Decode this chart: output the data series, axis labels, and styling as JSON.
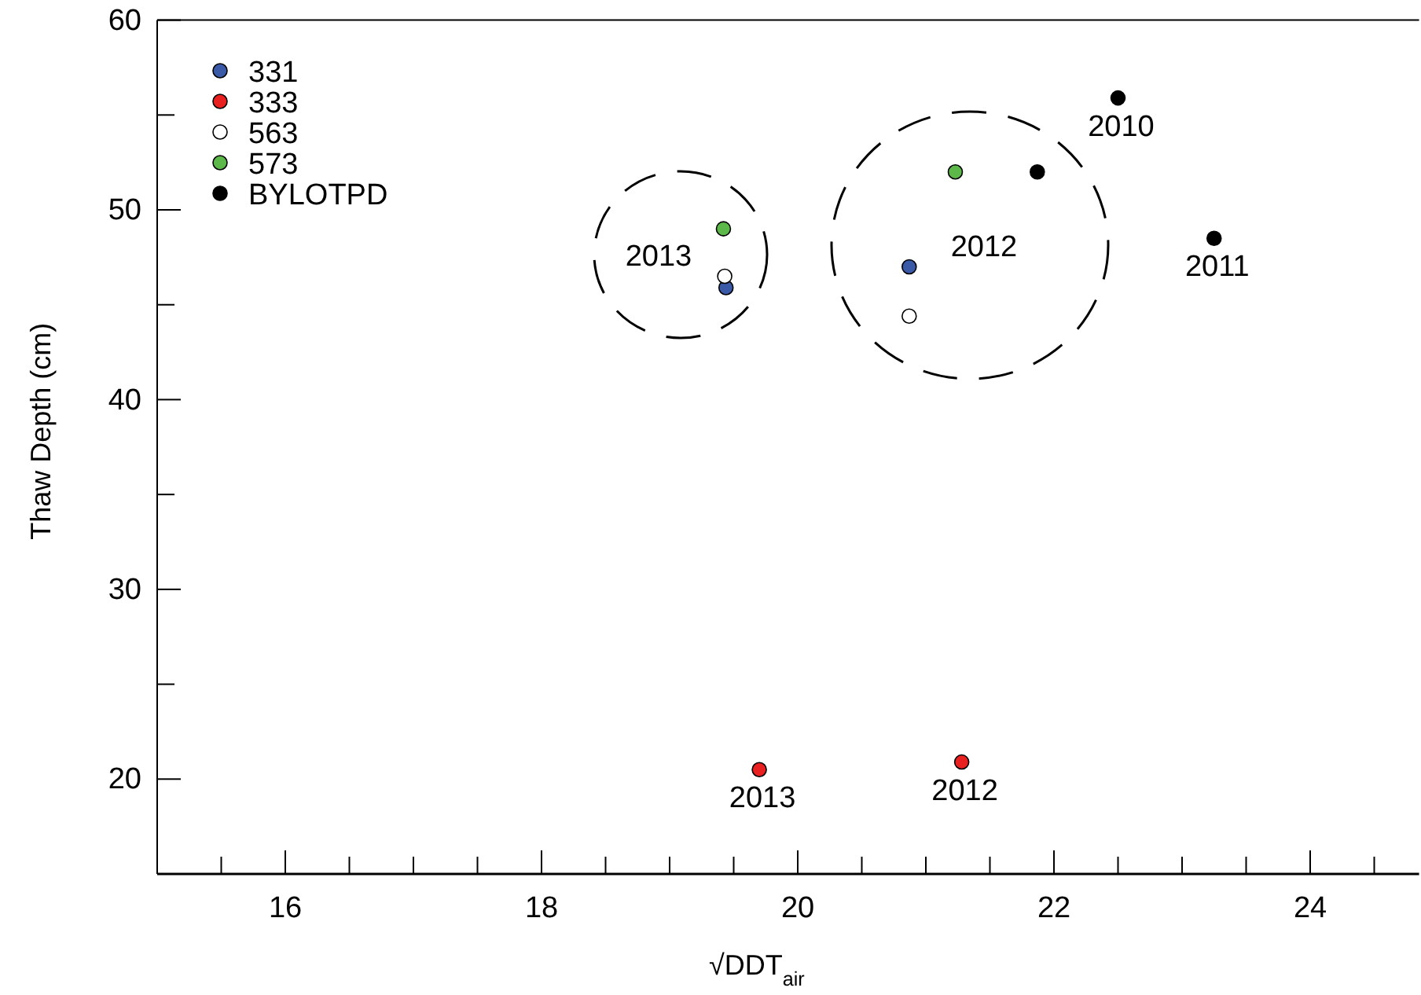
{
  "chart_data": {
    "type": "scatter",
    "xlabel": "√DDT$_{air}$",
    "ylabel": "Thaw Depth (cm)",
    "xlim": [
      15,
      24.85
    ],
    "ylim": [
      15,
      60
    ],
    "xticks": [
      {
        "value": 15.5,
        "label": null
      },
      16,
      {
        "value": 16.5,
        "label": null
      },
      {
        "value": 17,
        "label": null
      },
      {
        "value": 17.5,
        "label": null
      },
      18,
      {
        "value": 18.5,
        "label": null
      },
      {
        "value": 19,
        "label": null
      },
      {
        "value": 19.5,
        "label": null
      },
      20,
      {
        "value": 20.5,
        "label": null
      },
      {
        "value": 21,
        "label": null
      },
      {
        "value": 21.5,
        "label": null
      },
      22,
      {
        "value": 22.5,
        "label": null
      },
      {
        "value": 23,
        "label": null
      },
      {
        "value": 23.5,
        "label": null
      },
      24,
      {
        "value": 24.5,
        "label": null
      }
    ],
    "yticks": [
      20,
      {
        "value": 25,
        "label": null
      },
      30,
      {
        "value": 35,
        "label": null
      },
      40,
      {
        "value": 45,
        "label": null
      },
      50,
      {
        "value": 55,
        "label": null
      },
      60
    ],
    "grid": false,
    "legend": "top left",
    "marker": "circle",
    "series": [
      {
        "name": "331",
        "color": "#3a5aa8",
        "x": [
          19.44,
          20.87
        ],
        "values": [
          45.9,
          47.0
        ]
      },
      {
        "name": "333",
        "color": "#e82020",
        "x": [
          19.7,
          21.28
        ],
        "values": [
          20.5,
          20.9
        ]
      },
      {
        "name": "563",
        "color": "#ffffff",
        "x": [
          19.43,
          20.87
        ],
        "values": [
          46.5,
          44.4
        ]
      },
      {
        "name": "573",
        "color": "#5db84a",
        "x": [
          19.42,
          21.23
        ],
        "values": [
          49.0,
          52.0
        ]
      },
      {
        "name": "BYLOTPD",
        "color": "#000000",
        "x": [
          21.87,
          22.5,
          23.25
        ],
        "values": [
          52.0,
          55.9,
          48.5
        ]
      }
    ],
    "annotations": [
      "2013",
      "2012",
      {
        "text": "2010",
        "x": 22.5,
        "y": 55.9
      },
      {
        "text": "2011",
        "x": 23.25,
        "y": 48.5
      },
      {
        "text": "2013",
        "x": 19.7,
        "y": 20.5
      },
      {
        "text": "2012",
        "x": 21.28,
        "y": 20.9
      }
    ]
  }
}
